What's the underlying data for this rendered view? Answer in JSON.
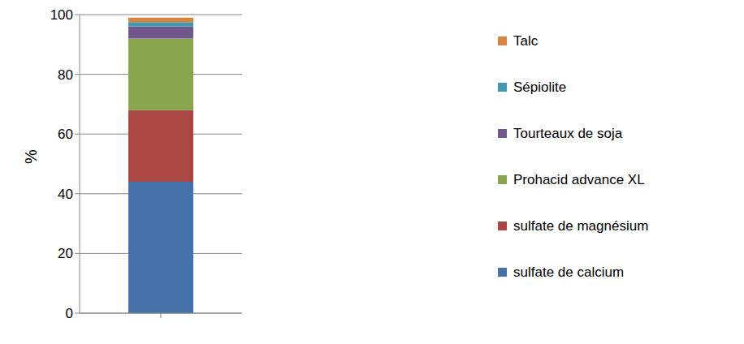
{
  "chart_data": {
    "type": "bar",
    "stacked": true,
    "ylabel": "%",
    "categories": [
      null
    ],
    "series": [
      {
        "name": "sulfate de calcium",
        "color": "#4572A7",
        "values": [
          44
        ]
      },
      {
        "name": "sulfate de magnésium",
        "color": "#AA4643",
        "values": [
          24
        ]
      },
      {
        "name": "Prohacid advance XL",
        "color": "#89A54E",
        "values": [
          24
        ]
      },
      {
        "name": "Tourteaux de soja",
        "color": "#71588F",
        "values": [
          4
        ]
      },
      {
        "name": "Sépiolite",
        "color": "#4198AF",
        "values": [
          1.5
        ]
      },
      {
        "name": "Talc",
        "color": "#DB843D",
        "values": [
          1.5
        ]
      }
    ],
    "ylim": [
      0,
      100
    ],
    "yticks": [
      0,
      20,
      40,
      60,
      80,
      100
    ],
    "grid": true,
    "legend": "right"
  }
}
